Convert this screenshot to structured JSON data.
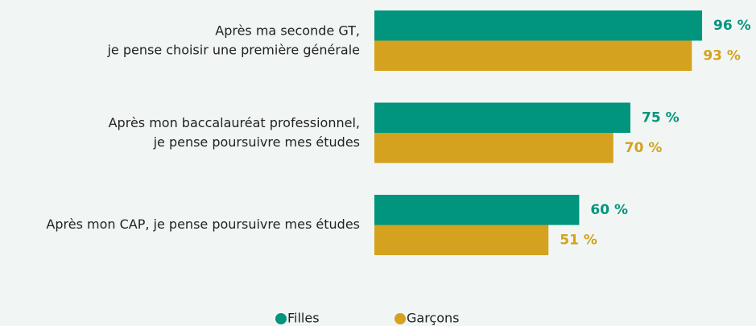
{
  "chart_data": {
    "type": "hbar",
    "categories": [
      "Après ma seconde GT,\nje pense choisir une première générale",
      "Après mon baccalauréat professionnel,\nje pense poursuivre mes études",
      "Après mon CAP, je pense poursuivre mes études"
    ],
    "series": [
      {
        "name": "Filles",
        "color": "#00957c",
        "values": [
          96,
          75,
          60
        ],
        "value_labels": [
          "96 %",
          "75 %",
          "60 %"
        ]
      },
      {
        "name": "Garçons",
        "color": "#d4a21e",
        "values": [
          93,
          70,
          51
        ],
        "value_labels": [
          "93 %",
          "70 %",
          "51 %"
        ]
      }
    ],
    "xlim": [
      0,
      100
    ],
    "legend": "bottom"
  }
}
